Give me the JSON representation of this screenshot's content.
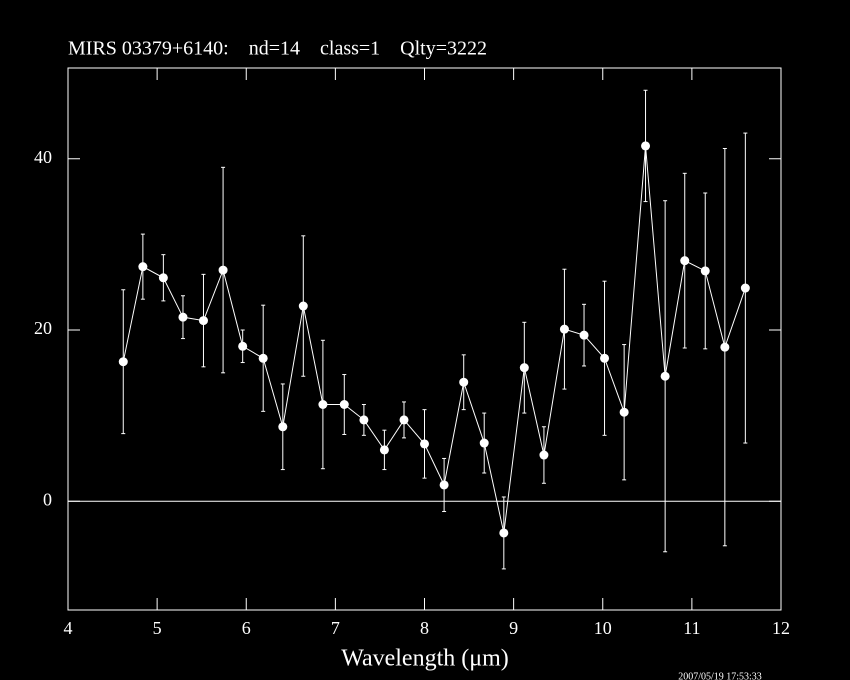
{
  "chart_data": {
    "type": "errorbar-line",
    "title": "MIRS 03379+6140:    nd=14    class=1    Qlty=3222",
    "x_label": "Wavelength (μm)",
    "timestamp": "2007/05/19 17:53:33",
    "x": [
      4.62,
      4.84,
      5.07,
      5.29,
      5.52,
      5.74,
      5.96,
      6.19,
      6.41,
      6.64,
      6.86,
      7.1,
      7.32,
      7.55,
      7.77,
      8.0,
      8.22,
      8.44,
      8.67,
      8.89,
      9.12,
      9.34,
      9.57,
      9.79,
      10.02,
      10.24,
      10.48,
      10.7,
      10.92,
      11.15,
      11.37,
      11.6
    ],
    "values": [
      16.3,
      27.4,
      26.1,
      21.5,
      21.1,
      27.0,
      18.1,
      16.7,
      8.7,
      22.8,
      11.3,
      11.3,
      9.5,
      6.0,
      9.5,
      6.7,
      1.9,
      13.9,
      6.8,
      -3.7,
      15.6,
      5.4,
      20.1,
      19.4,
      16.7,
      10.4,
      41.5,
      14.6,
      28.1,
      26.9,
      18.0,
      24.9
    ],
    "errors": [
      8.4,
      3.8,
      2.7,
      2.5,
      5.4,
      12.0,
      1.9,
      6.2,
      5.0,
      8.2,
      7.5,
      3.5,
      1.8,
      2.3,
      2.1,
      4.0,
      3.1,
      3.2,
      3.5,
      4.2,
      5.3,
      3.3,
      7.0,
      3.6,
      9.0,
      7.9,
      6.5,
      20.5,
      10.2,
      9.1,
      23.2,
      18.1
    ],
    "color": "#ffffff",
    "xlim": [
      4,
      12
    ],
    "xticks": [
      4,
      5,
      6,
      7,
      8,
      9,
      10,
      11,
      12
    ],
    "ylim": [
      -12.7,
      50.6
    ],
    "yticks": [
      0,
      20,
      40
    ],
    "reference_line": 0
  }
}
